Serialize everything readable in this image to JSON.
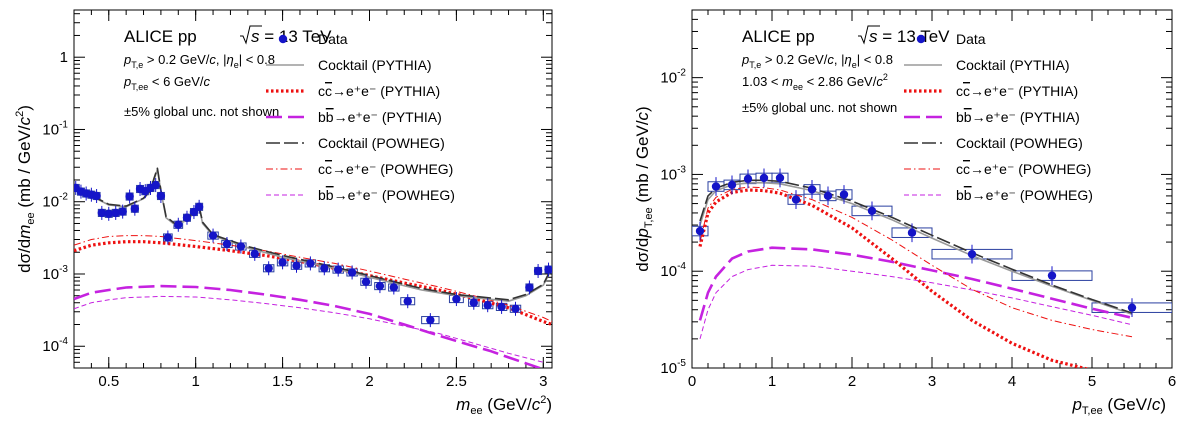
{
  "colors": {
    "data": "#1515c8",
    "box": "#2a3fa0",
    "cocktail_pythia": "#9a9a9a",
    "charm_pythia": "#ee1111",
    "beauty_pythia": "#c522e0",
    "cocktail_powheg": "#333333",
    "charm_powheg": "#ee1111",
    "beauty_powheg": "#c522e0"
  },
  "chart_data": [
    {
      "type": "scatter",
      "panel": "left",
      "ylabel": "dσ/dm_ee (mb / GeV/c²)",
      "xlabel": "m_ee (GeV/c²)",
      "log_y": true,
      "xlim": [
        0.3,
        3.05
      ],
      "ylim": [
        5e-05,
        4.5
      ],
      "xticks": [
        0.5,
        1,
        1.5,
        2,
        2.5,
        3
      ],
      "xtick_labels": [
        "0.5",
        "1",
        "1.5",
        "2",
        "2.5",
        "3"
      ],
      "yticks": [
        0.0001,
        0.001,
        0.01,
        0.1,
        1
      ],
      "ytick_labels": [
        "10⁻⁴",
        "10⁻³",
        "10⁻²",
        "10⁻¹",
        "1"
      ],
      "annotations": {
        "system": "ALICE pp",
        "energy": "s = 13 TeV",
        "cut1": "p_T,e > 0.2 GeV/c, |η_e| < 0.8",
        "cut2": "p_T,ee < 6 GeV/c",
        "note": "±5% global unc. not shown"
      },
      "legend": {
        "placement": "top-right",
        "entries": [
          {
            "key": "data",
            "label": "Data"
          },
          {
            "key": "cocktail_pythia",
            "label": "Cocktail (PYTHIA)"
          },
          {
            "key": "charm_pythia",
            "label": "cc̄→e⁺e⁻ (PYTHIA)"
          },
          {
            "key": "beauty_pythia",
            "label": "bb̄→e⁺e⁻ (PYTHIA)"
          },
          {
            "key": "cocktail_powheg",
            "label": "Cocktail (POWHEG)"
          },
          {
            "key": "charm_powheg",
            "label": "cc̄→e⁺e⁻ (POWHEG)"
          },
          {
            "key": "beauty_powheg",
            "label": "bb̄→e⁺e⁻ (POWHEG)"
          }
        ]
      },
      "data_points": [
        {
          "x": 0.31,
          "y": 0.0155,
          "xw": 0.02
        },
        {
          "x": 0.34,
          "y": 0.0138,
          "xw": 0.02
        },
        {
          "x": 0.37,
          "y": 0.013,
          "xw": 0.02
        },
        {
          "x": 0.4,
          "y": 0.0125,
          "xw": 0.02
        },
        {
          "x": 0.43,
          "y": 0.012,
          "xw": 0.02
        },
        {
          "x": 0.46,
          "y": 0.007,
          "xw": 0.02
        },
        {
          "x": 0.5,
          "y": 0.0068,
          "xw": 0.02
        },
        {
          "x": 0.54,
          "y": 0.007,
          "xw": 0.02
        },
        {
          "x": 0.58,
          "y": 0.0073,
          "xw": 0.02
        },
        {
          "x": 0.62,
          "y": 0.0118,
          "xw": 0.02
        },
        {
          "x": 0.65,
          "y": 0.008,
          "xw": 0.02
        },
        {
          "x": 0.68,
          "y": 0.015,
          "xw": 0.02
        },
        {
          "x": 0.71,
          "y": 0.014,
          "xw": 0.02
        },
        {
          "x": 0.74,
          "y": 0.0155,
          "xw": 0.02
        },
        {
          "x": 0.77,
          "y": 0.017,
          "xw": 0.02
        },
        {
          "x": 0.8,
          "y": 0.012,
          "xw": 0.02
        },
        {
          "x": 0.84,
          "y": 0.0032,
          "xw": 0.025
        },
        {
          "x": 0.9,
          "y": 0.0048,
          "xw": 0.025
        },
        {
          "x": 0.95,
          "y": 0.006,
          "xw": 0.02
        },
        {
          "x": 0.99,
          "y": 0.0072,
          "xw": 0.02
        },
        {
          "x": 1.02,
          "y": 0.0085,
          "xw": 0.02
        },
        {
          "x": 1.1,
          "y": 0.0034,
          "xw": 0.03
        },
        {
          "x": 1.18,
          "y": 0.0026,
          "xw": 0.03
        },
        {
          "x": 1.26,
          "y": 0.0024,
          "xw": 0.03
        },
        {
          "x": 1.34,
          "y": 0.0019,
          "xw": 0.03
        },
        {
          "x": 1.42,
          "y": 0.0012,
          "xw": 0.03
        },
        {
          "x": 1.5,
          "y": 0.00145,
          "xw": 0.03
        },
        {
          "x": 1.58,
          "y": 0.0013,
          "xw": 0.03
        },
        {
          "x": 1.66,
          "y": 0.0014,
          "xw": 0.03
        },
        {
          "x": 1.74,
          "y": 0.0012,
          "xw": 0.03
        },
        {
          "x": 1.82,
          "y": 0.00115,
          "xw": 0.03
        },
        {
          "x": 1.9,
          "y": 0.00105,
          "xw": 0.03
        },
        {
          "x": 1.98,
          "y": 0.00078,
          "xw": 0.03
        },
        {
          "x": 2.06,
          "y": 0.00068,
          "xw": 0.03
        },
        {
          "x": 2.14,
          "y": 0.00065,
          "xw": 0.03
        },
        {
          "x": 2.22,
          "y": 0.00042,
          "xw": 0.04
        },
        {
          "x": 2.35,
          "y": 0.00023,
          "xw": 0.05
        },
        {
          "x": 2.5,
          "y": 0.00045,
          "xw": 0.04
        },
        {
          "x": 2.6,
          "y": 0.0004,
          "xw": 0.03
        },
        {
          "x": 2.68,
          "y": 0.00037,
          "xw": 0.03
        },
        {
          "x": 2.76,
          "y": 0.00035,
          "xw": 0.03
        },
        {
          "x": 2.84,
          "y": 0.00033,
          "xw": 0.03
        },
        {
          "x": 2.92,
          "y": 0.00065,
          "xw": 0.02
        },
        {
          "x": 2.97,
          "y": 0.0011,
          "xw": 0.02
        },
        {
          "x": 3.03,
          "y": 0.00115,
          "xw": 0.02
        }
      ],
      "curves": {
        "cocktail_pythia": {
          "x": [
            0.3,
            0.4,
            0.5,
            0.6,
            0.7,
            0.74,
            0.76,
            0.78,
            0.8,
            0.83,
            0.88,
            0.95,
            1.0,
            1.02,
            1.04,
            1.1,
            1.3,
            1.5,
            1.8,
            2.0,
            2.3,
            2.5,
            2.8,
            2.9,
            3.0,
            3.05
          ],
          "y": [
            0.015,
            0.012,
            0.009,
            0.0085,
            0.011,
            0.014,
            0.02,
            0.028,
            0.014,
            0.006,
            0.0048,
            0.0055,
            0.0075,
            0.0085,
            0.005,
            0.0034,
            0.0023,
            0.0017,
            0.0012,
            0.0009,
            0.0006,
            0.0005,
            0.00042,
            0.0005,
            0.0007,
            0.0012
          ]
        },
        "charm_pythia": {
          "x": [
            0.3,
            0.4,
            0.5,
            0.6,
            0.7,
            0.8,
            1.0,
            1.2,
            1.4,
            1.6,
            1.8,
            2.0,
            2.2,
            2.4,
            2.6,
            2.8,
            3.0,
            3.05
          ],
          "y": [
            0.0021,
            0.0025,
            0.0027,
            0.0028,
            0.0028,
            0.0027,
            0.0024,
            0.0021,
            0.0018,
            0.0015,
            0.0012,
            0.00095,
            0.00075,
            0.0006,
            0.00046,
            0.00034,
            0.00022,
            0.0002
          ]
        },
        "beauty_pythia": {
          "x": [
            0.3,
            0.4,
            0.5,
            0.6,
            0.8,
            1.0,
            1.2,
            1.4,
            1.6,
            1.8,
            2.0,
            2.2,
            2.4,
            2.6,
            2.7,
            2.8,
            2.9,
            3.0
          ],
          "y": [
            0.00045,
            0.00055,
            0.0006,
            0.00065,
            0.00068,
            0.00066,
            0.0006,
            0.00052,
            0.00044,
            0.00036,
            0.00028,
            0.0002,
            0.00014,
            0.0001,
            8.5e-05,
            7e-05,
            5.8e-05,
            4.8e-05
          ]
        },
        "cocktail_powheg": {
          "x": [
            0.3,
            0.4,
            0.5,
            0.6,
            0.7,
            0.74,
            0.76,
            0.78,
            0.8,
            0.83,
            0.88,
            0.95,
            1.0,
            1.02,
            1.04,
            1.1,
            1.3,
            1.5,
            1.8,
            2.0,
            2.3,
            2.5,
            2.8,
            2.9,
            3.0,
            3.05
          ],
          "y": [
            0.0155,
            0.0122,
            0.0092,
            0.0087,
            0.0112,
            0.0143,
            0.021,
            0.029,
            0.0145,
            0.0062,
            0.005,
            0.0057,
            0.0077,
            0.0087,
            0.0052,
            0.0035,
            0.0024,
            0.0018,
            0.00125,
            0.00095,
            0.00063,
            0.00052,
            0.00044,
            0.00052,
            0.00072,
            0.00125
          ]
        },
        "charm_powheg": {
          "x": [
            0.3,
            0.4,
            0.5,
            0.6,
            0.7,
            0.8,
            1.0,
            1.2,
            1.4,
            1.6,
            1.8,
            2.0,
            2.2,
            2.4,
            2.6,
            2.8,
            3.0,
            3.05
          ],
          "y": [
            0.0025,
            0.003,
            0.0033,
            0.0034,
            0.0034,
            0.0033,
            0.0029,
            0.0025,
            0.0021,
            0.0017,
            0.0014,
            0.0011,
            0.00085,
            0.00066,
            0.0005,
            0.00037,
            0.00025,
            0.00022
          ]
        },
        "beauty_powheg": {
          "x": [
            0.3,
            0.4,
            0.5,
            0.6,
            0.8,
            1.0,
            1.2,
            1.4,
            1.6,
            1.8,
            2.0,
            2.2,
            2.4,
            2.6,
            2.8,
            3.0
          ],
          "y": [
            0.00033,
            0.0004,
            0.00044,
            0.00047,
            0.00049,
            0.00048,
            0.00044,
            0.00039,
            0.00034,
            0.00029,
            0.00024,
            0.00019,
            0.00015,
            0.00011,
            8e-05,
            6e-05
          ]
        }
      }
    },
    {
      "type": "scatter",
      "panel": "right",
      "ylabel": "dσ/dp_T,ee (mb / GeV/c)",
      "xlabel": "p_T,ee (GeV/c)",
      "log_y": true,
      "xlim": [
        0,
        6
      ],
      "ylim": [
        1e-05,
        0.05
      ],
      "xticks": [
        0,
        1,
        2,
        3,
        4,
        5,
        6
      ],
      "xtick_labels": [
        "0",
        "1",
        "2",
        "3",
        "4",
        "5",
        "6"
      ],
      "yticks": [
        1e-05,
        0.0001,
        0.001,
        0.01
      ],
      "ytick_labels": [
        "10⁻⁵",
        "10⁻⁴",
        "10⁻³",
        "10⁻²"
      ],
      "annotations": {
        "system": "ALICE pp",
        "energy": "s = 13 TeV",
        "cut1": "p_T,e > 0.2 GeV/c, |η_e| < 0.8",
        "cut2": "1.03 < m_ee < 2.86 GeV/c²",
        "note": "±5% global unc. not shown"
      },
      "legend": {
        "placement": "top-right",
        "entries": [
          {
            "key": "data",
            "label": "Data"
          },
          {
            "key": "cocktail_pythia",
            "label": "Cocktail (PYTHIA)"
          },
          {
            "key": "charm_pythia",
            "label": "cc̄→e⁺e⁻ (PYTHIA)"
          },
          {
            "key": "beauty_pythia",
            "label": "bb̄→e⁺e⁻ (PYTHIA)"
          },
          {
            "key": "cocktail_powheg",
            "label": "Cocktail (POWHEG)"
          },
          {
            "key": "charm_powheg",
            "label": "cc̄→e⁺e⁻ (POWHEG)"
          },
          {
            "key": "beauty_powheg",
            "label": "bb̄→e⁺e⁻ (POWHEG)"
          }
        ]
      },
      "data_points": [
        {
          "x": 0.1,
          "y": 0.00026,
          "xw": 0.1
        },
        {
          "x": 0.3,
          "y": 0.00075,
          "xw": 0.1
        },
        {
          "x": 0.5,
          "y": 0.00078,
          "xw": 0.1
        },
        {
          "x": 0.7,
          "y": 0.0009,
          "xw": 0.1
        },
        {
          "x": 0.9,
          "y": 0.00092,
          "xw": 0.1
        },
        {
          "x": 1.1,
          "y": 0.00092,
          "xw": 0.1
        },
        {
          "x": 1.3,
          "y": 0.00055,
          "xw": 0.1
        },
        {
          "x": 1.5,
          "y": 0.0007,
          "xw": 0.1
        },
        {
          "x": 1.7,
          "y": 0.0006,
          "xw": 0.1
        },
        {
          "x": 1.9,
          "y": 0.00062,
          "xw": 0.1
        },
        {
          "x": 2.25,
          "y": 0.00042,
          "xw": 0.25
        },
        {
          "x": 2.75,
          "y": 0.00025,
          "xw": 0.25
        },
        {
          "x": 3.5,
          "y": 0.00015,
          "xw": 0.5
        },
        {
          "x": 4.5,
          "y": 9e-05,
          "xw": 0.5
        },
        {
          "x": 5.5,
          "y": 4.2e-05,
          "xw": 0.5
        }
      ],
      "curves": {
        "cocktail_pythia": {
          "x": [
            0.1,
            0.2,
            0.3,
            0.5,
            0.7,
            0.9,
            1.1,
            1.5,
            2.0,
            2.5,
            3.0,
            3.5,
            4.0,
            4.5,
            5.0,
            5.5
          ],
          "y": [
            0.0003,
            0.00055,
            0.00068,
            0.00078,
            0.00082,
            0.00082,
            0.0008,
            0.00068,
            0.0005,
            0.00034,
            0.00022,
            0.000145,
            0.0001,
            7e-05,
            5e-05,
            3.6e-05
          ]
        },
        "charm_pythia": {
          "x": [
            0.1,
            0.2,
            0.3,
            0.5,
            0.7,
            0.9,
            1.1,
            1.5,
            2.0,
            2.5,
            3.0,
            3.5,
            4.0,
            4.5,
            5.0,
            5.5
          ],
          "y": [
            0.00018,
            0.0004,
            0.00052,
            0.00065,
            0.00069,
            0.00068,
            0.00064,
            0.00048,
            0.00028,
            0.000135,
            6.2e-05,
            3.1e-05,
            1.8e-05,
            1.2e-05,
            9.5e-06,
            8.5e-06
          ]
        },
        "beauty_pythia": {
          "x": [
            0.1,
            0.2,
            0.3,
            0.5,
            0.7,
            1.0,
            1.5,
            2.0,
            2.5,
            3.0,
            3.5,
            4.0,
            4.5,
            5.0,
            5.5
          ],
          "y": [
            3.1e-05,
            6e-05,
            8.8e-05,
            0.000135,
            0.00016,
            0.000175,
            0.000168,
            0.000148,
            0.000125,
            0.000102,
            8.3e-05,
            6.6e-05,
            5.2e-05,
            4.1e-05,
            3.3e-05
          ]
        },
        "cocktail_powheg": {
          "x": [
            0.1,
            0.2,
            0.3,
            0.5,
            0.7,
            0.9,
            1.1,
            1.5,
            2.0,
            2.5,
            3.0,
            3.5,
            4.0,
            4.5,
            5.0,
            5.5
          ],
          "y": [
            0.00033,
            0.0006,
            0.00072,
            0.00083,
            0.00087,
            0.00087,
            0.00085,
            0.00072,
            0.00053,
            0.00036,
            0.000235,
            0.000155,
            0.000105,
            7.2e-05,
            5.1e-05,
            3.7e-05
          ]
        },
        "charm_powheg": {
          "x": [
            0.1,
            0.2,
            0.3,
            0.5,
            0.7,
            0.9,
            1.1,
            1.5,
            2.0,
            2.5,
            3.0,
            3.5,
            4.0,
            4.5,
            5.0,
            5.5
          ],
          "y": [
            0.0002,
            0.00045,
            0.00058,
            0.0007,
            0.00074,
            0.00073,
            0.00069,
            0.00055,
            0.00036,
            0.00021,
            0.000115,
            6.5e-05,
            4.2e-05,
            3.1e-05,
            2.5e-05,
            2.1e-05
          ]
        },
        "beauty_powheg": {
          "x": [
            0.1,
            0.2,
            0.3,
            0.5,
            0.7,
            1.0,
            1.5,
            2.0,
            2.5,
            3.0,
            3.5,
            4.0,
            4.5,
            5.0,
            5.5
          ],
          "y": [
            2e-05,
            4e-05,
            6e-05,
            8.8e-05,
            0.000104,
            0.000115,
            0.000113,
            0.0001,
            8.8e-05,
            7.6e-05,
            6.4e-05,
            5.3e-05,
            4.3e-05,
            3.5e-05,
            2.8e-05
          ]
        }
      }
    }
  ]
}
